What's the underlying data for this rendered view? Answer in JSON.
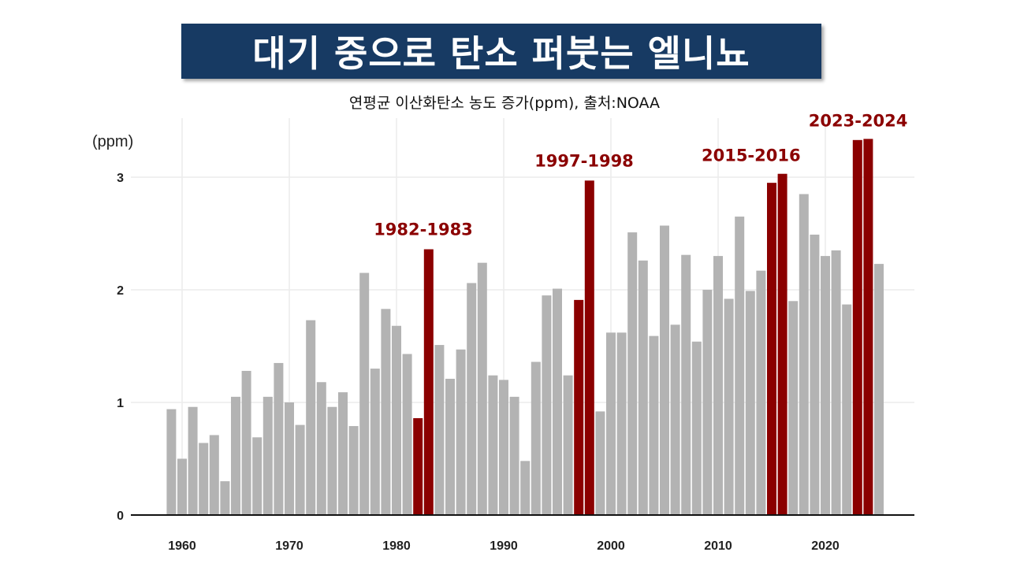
{
  "header": {
    "title": "대기 중으로 탄소 퍼붓는 엘니뇨",
    "subtitle": "연평균 이산화탄소 농도 증가(ppm), 출처:NOAA"
  },
  "colors": {
    "normal": "#b3b3b3",
    "highlight": "#8b0000",
    "title_bg": "#173a63"
  },
  "chart_data": {
    "type": "bar",
    "title": "",
    "ylabel": "(ppm)",
    "xlabel": "",
    "ylim": [
      0,
      3.5
    ],
    "xlim": [
      1957.5,
      2028.5
    ],
    "grid": true,
    "x_ticks": [
      1960,
      1970,
      1980,
      1990,
      2000,
      2010,
      2020
    ],
    "y_ticks": [
      0,
      1,
      2,
      3
    ],
    "x": [
      1959,
      1960,
      1961,
      1962,
      1963,
      1964,
      1965,
      1966,
      1967,
      1968,
      1969,
      1970,
      1971,
      1972,
      1973,
      1974,
      1975,
      1976,
      1977,
      1978,
      1979,
      1980,
      1981,
      1982,
      1983,
      1984,
      1985,
      1986,
      1987,
      1988,
      1989,
      1990,
      1991,
      1992,
      1993,
      1994,
      1995,
      1996,
      1997,
      1998,
      1999,
      2000,
      2001,
      2002,
      2003,
      2004,
      2005,
      2006,
      2007,
      2008,
      2009,
      2010,
      2011,
      2012,
      2013,
      2014,
      2015,
      2016,
      2017,
      2018,
      2019,
      2020,
      2021,
      2022,
      2023,
      2024,
      2025
    ],
    "values": [
      0.94,
      0.5,
      0.96,
      0.64,
      0.71,
      0.3,
      1.05,
      1.28,
      0.69,
      1.05,
      1.35,
      1.0,
      0.8,
      1.73,
      1.18,
      0.96,
      1.09,
      0.79,
      2.15,
      1.3,
      1.83,
      1.68,
      1.43,
      0.86,
      2.36,
      1.51,
      1.21,
      1.47,
      2.06,
      2.24,
      1.24,
      1.2,
      1.05,
      0.48,
      1.36,
      1.95,
      2.01,
      1.24,
      1.91,
      2.97,
      0.92,
      1.62,
      1.62,
      2.51,
      2.26,
      1.59,
      2.57,
      1.69,
      2.31,
      1.54,
      2.0,
      2.3,
      1.92,
      2.65,
      1.99,
      2.17,
      2.95,
      3.03,
      1.9,
      2.85,
      2.49,
      2.3,
      2.35,
      1.87,
      3.33,
      3.34,
      2.23
    ],
    "highlighted_years": [
      1982,
      1983,
      1997,
      1998,
      2015,
      2016,
      2023,
      2024
    ],
    "annotations": [
      {
        "label": "1982-1983",
        "years": [
          1982,
          1983
        ]
      },
      {
        "label": "1997-1998",
        "years": [
          1997,
          1998
        ]
      },
      {
        "label": "2015-2016",
        "years": [
          2015,
          2016
        ]
      },
      {
        "label": "2023-2024",
        "years": [
          2023,
          2024
        ]
      }
    ]
  }
}
